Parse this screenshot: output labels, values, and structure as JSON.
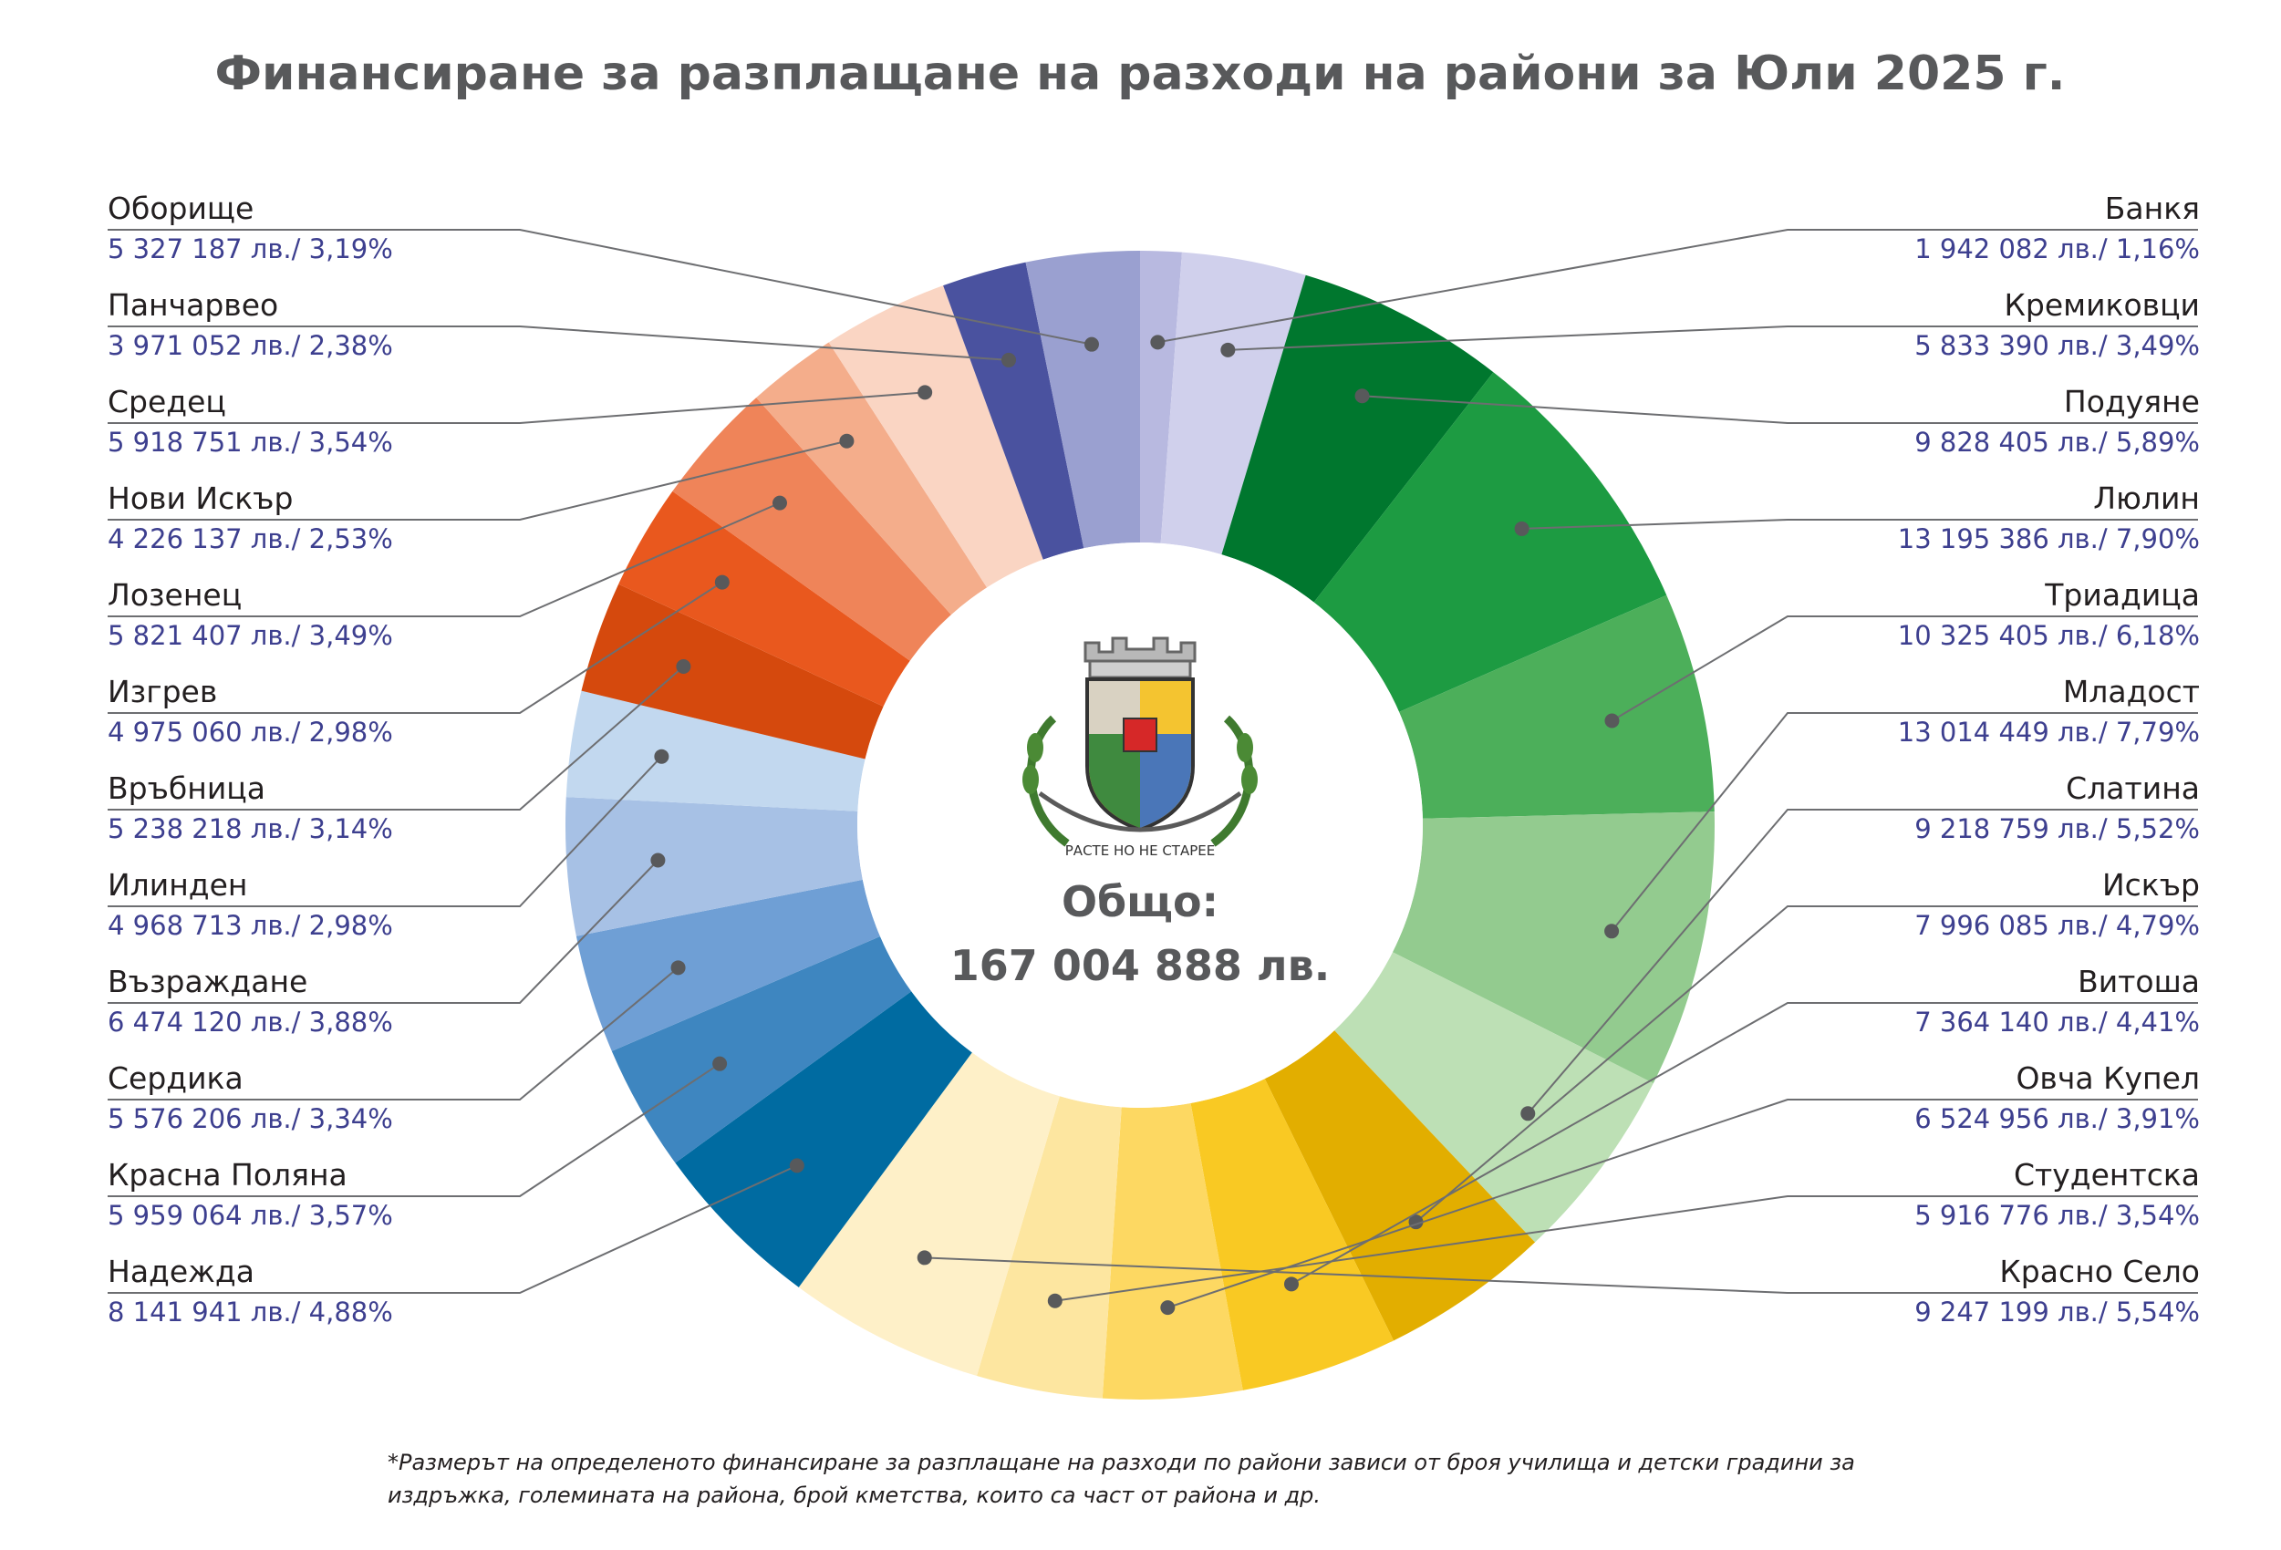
{
  "chart_data": {
    "type": "pie",
    "variant": "donut",
    "title": "Финансиране за разплащане на разходи на райони за Юли 2025 г.",
    "total_label": "Общо:",
    "total_value": "167 004 888 лв.",
    "footnote_lines": [
      "*Размерът на определеното финансиране за разплащане на разходи по райони зависи от броя училища и детски градини за",
      "издръжка, големината на района, брой кметства, които са част от района и др."
    ],
    "emblem_text": "РАСТЕ НО НЕ СТАРЕЕ",
    "slices": [
      {
        "name": "Банкя",
        "amount": 1942082,
        "amount_text": "1 942 082 лв./ 1,16%",
        "percent": 1.16,
        "color": "#b8b9e0",
        "side": "right"
      },
      {
        "name": "Кремиковци",
        "amount": 5833390,
        "amount_text": "5 833 390 лв./ 3,49%",
        "percent": 3.49,
        "color": "#d0d0ec",
        "side": "right"
      },
      {
        "name": "Подуяне",
        "amount": 9828405,
        "amount_text": "9 828 405 лв./ 5,89%",
        "percent": 5.89,
        "color": "#00772e",
        "side": "right"
      },
      {
        "name": "Люлин",
        "amount": 13195386,
        "amount_text": "13 195 386 лв./ 7,90%",
        "percent": 7.9,
        "color": "#1d9b42",
        "side": "right"
      },
      {
        "name": "Триадица",
        "amount": 10325405,
        "amount_text": "10 325 405 лв./ 6,18%",
        "percent": 6.18,
        "color": "#4caf5a",
        "side": "right"
      },
      {
        "name": "Младост",
        "amount": 13014449,
        "amount_text": "13 014 449 лв./ 7,79%",
        "percent": 7.79,
        "color": "#93cb8f",
        "side": "right"
      },
      {
        "name": "Слатина",
        "amount": 9218759,
        "amount_text": "9 218 759 лв./ 5,52%",
        "percent": 5.52,
        "color": "#bde0b5",
        "side": "right"
      },
      {
        "name": "Искър",
        "amount": 7996085,
        "amount_text": "7 996 085 лв./ 4,79%",
        "percent": 4.79,
        "color": "#e2ae00",
        "side": "right"
      },
      {
        "name": "Витоша",
        "amount": 7364140,
        "amount_text": "7 364 140 лв./ 4,41%",
        "percent": 4.41,
        "color": "#f9c923",
        "side": "right"
      },
      {
        "name": "Овча Купел",
        "amount": 6524956,
        "amount_text": "6 524 956 лв./ 3,91%",
        "percent": 3.91,
        "color": "#fdd862",
        "side": "right"
      },
      {
        "name": "Студентска",
        "amount": 5916776,
        "amount_text": "5 916 776 лв./ 3,54%",
        "percent": 3.54,
        "color": "#fde6a0",
        "side": "right"
      },
      {
        "name": "Красно Село",
        "amount": 9247199,
        "amount_text": "9 247 199 лв./ 5,54%",
        "percent": 5.54,
        "color": "#fef0c8",
        "side": "right"
      },
      {
        "name": "Надежда",
        "amount": 8141941,
        "amount_text": "8 141 941 лв./ 4,88%",
        "percent": 4.88,
        "color": "#006ba1",
        "side": "left"
      },
      {
        "name": "Красна Поляна",
        "amount": 5959064,
        "amount_text": "5 959 064 лв./ 3,57%",
        "percent": 3.57,
        "color": "#3e86c0",
        "side": "left"
      },
      {
        "name": "Сердика",
        "amount": 5576206,
        "amount_text": "5 576 206 лв./ 3,34%",
        "percent": 3.34,
        "color": "#6f9fd5",
        "side": "left"
      },
      {
        "name": "Възраждане",
        "amount": 6474120,
        "amount_text": "6 474 120 лв./ 3,88%",
        "percent": 3.88,
        "color": "#a7c1e5",
        "side": "left"
      },
      {
        "name": "Илинден",
        "amount": 4968713,
        "amount_text": "4 968 713 лв./ 2,98%",
        "percent": 2.98,
        "color": "#c2d8ef",
        "side": "left"
      },
      {
        "name": "Връбница",
        "amount": 5238218,
        "amount_text": "5 238 218 лв./ 3,14%",
        "percent": 3.14,
        "color": "#d5490d",
        "side": "left"
      },
      {
        "name": "Изгрев",
        "amount": 4975060,
        "amount_text": "4 975 060 лв./ 2,98%",
        "percent": 2.98,
        "color": "#e9581e",
        "side": "left"
      },
      {
        "name": "Лозенец",
        "amount": 5821407,
        "amount_text": "5 821 407 лв./ 3,49%",
        "percent": 3.49,
        "color": "#ef8459",
        "side": "left"
      },
      {
        "name": "Нови Искър",
        "amount": 4226137,
        "amount_text": "4 226 137 лв./ 2,53%",
        "percent": 2.53,
        "color": "#f4ad8b",
        "side": "left"
      },
      {
        "name": "Средец",
        "amount": 5918751,
        "amount_text": "5 918 751 лв./ 3,54%",
        "percent": 3.54,
        "color": "#fad5c3",
        "side": "left"
      },
      {
        "name": "Панчарвео",
        "amount": 3971052,
        "amount_text": "3 971 052 лв./ 2,38%",
        "percent": 2.38,
        "color": "#4a529f",
        "side": "left"
      },
      {
        "name": "Оборище",
        "amount": 5327187,
        "amount_text": "5 327 187 лв./ 3,19%",
        "percent": 3.19,
        "color": "#9aa0d0",
        "side": "left"
      }
    ]
  }
}
